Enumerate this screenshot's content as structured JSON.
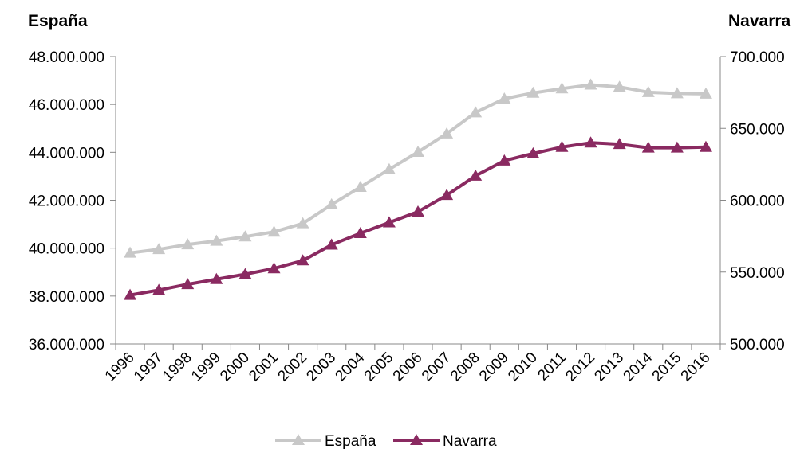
{
  "chart_data": {
    "type": "line",
    "y_left_title": "España",
    "y_right_title": "Navarra",
    "categories": [
      "1996",
      "1997",
      "1998",
      "1999",
      "2000",
      "2001",
      "2002",
      "2003",
      "2004",
      "2005",
      "2006",
      "2007",
      "2008",
      "2009",
      "2010",
      "2011",
      "2012",
      "2013",
      "2014",
      "2015",
      "2016"
    ],
    "ylim_left": [
      36000000,
      48000000
    ],
    "ylim_right": [
      500000,
      700000
    ],
    "yticks_left": [
      "36.000.000",
      "38.000.000",
      "40.000.000",
      "42.000.000",
      "44.000.000",
      "46.000.000",
      "48.000.000"
    ],
    "yticks_left_values": [
      36000000,
      38000000,
      40000000,
      42000000,
      44000000,
      46000000,
      48000000
    ],
    "yticks_right": [
      "500.000",
      "550.000",
      "600.000",
      "650.000",
      "700.000"
    ],
    "yticks_right_values": [
      500000,
      550000,
      600000,
      650000,
      700000
    ],
    "series": [
      {
        "name": "España",
        "axis": "left",
        "color": "#c8c8c8",
        "marker": "triangle",
        "values": [
          39800000,
          39950000,
          40150000,
          40300000,
          40480000,
          40680000,
          41030000,
          41820000,
          42550000,
          43290000,
          44010000,
          44780000,
          45660000,
          46240000,
          46480000,
          46660000,
          46820000,
          46730000,
          46510000,
          46460000,
          46440000
        ]
      },
      {
        "name": "Navarra",
        "axis": "right",
        "color": "#8a2a61",
        "marker": "triangle",
        "values": [
          534000,
          537500,
          541500,
          545000,
          548500,
          552500,
          558000,
          569000,
          577000,
          584500,
          592000,
          603500,
          617000,
          627500,
          632500,
          637000,
          640000,
          639000,
          636500,
          636500,
          637000
        ]
      }
    ],
    "legend_position": "bottom",
    "grid": false
  }
}
